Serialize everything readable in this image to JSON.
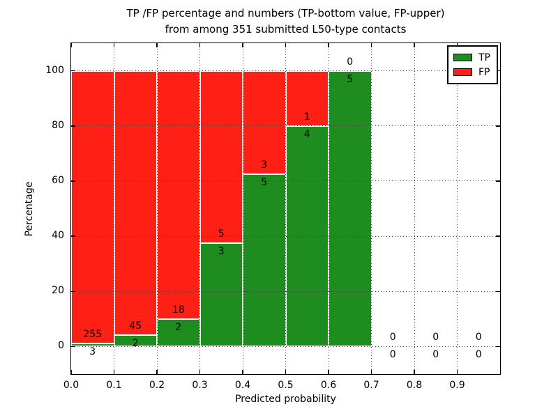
{
  "title": {
    "line1": "TP /FP percentage and numbers (TP-bottom value, FP-upper)",
    "line2": "from among 351 submitted L50-type contacts"
  },
  "colors": {
    "tp_green": "#1e8c1e",
    "fp_red": "#ff2015",
    "grid": "#3a3a3a",
    "frame": "#000000",
    "background": "#ffffff",
    "bar_edge": "#ffffff"
  },
  "chart_data": {
    "type": "bar",
    "stacked": true,
    "normalized": "each bin scaled to 100%",
    "title": "TP /FP percentage and numbers (TP-bottom value, FP-upper) from among 351 submitted L50-type contacts",
    "xlabel": "Predicted probability",
    "ylabel": "Percentage",
    "xlim": [
      0.0,
      1.0
    ],
    "ylim": [
      -10,
      110
    ],
    "grid": "dotted, both axes, drawn over bars",
    "x_ticks": [
      {
        "label": "0.0",
        "value": 0.0
      },
      {
        "label": "0.1",
        "value": 0.1
      },
      {
        "label": "0.2",
        "value": 0.2
      },
      {
        "label": "0.3",
        "value": 0.3
      },
      {
        "label": "0.4",
        "value": 0.4
      },
      {
        "label": "0.5",
        "value": 0.5
      },
      {
        "label": "0.6",
        "value": 0.6
      },
      {
        "label": "0.7",
        "value": 0.7
      },
      {
        "label": "0.8",
        "value": 0.8
      },
      {
        "label": "0.9",
        "value": 0.9
      }
    ],
    "y_ticks": [
      {
        "label": "0",
        "value": 0
      },
      {
        "label": "20",
        "value": 20
      },
      {
        "label": "40",
        "value": 40
      },
      {
        "label": "60",
        "value": 60
      },
      {
        "label": "80",
        "value": 80
      },
      {
        "label": "100",
        "value": 100
      }
    ],
    "legend": {
      "position": "upper right",
      "entries": [
        {
          "label": "TP",
          "color": "#1e8c1e"
        },
        {
          "label": "FP",
          "color": "#ff2015"
        }
      ]
    },
    "total_contacts": 351,
    "bins": [
      {
        "range": [
          0.0,
          0.1
        ],
        "tp": 3,
        "fp": 255,
        "tp_pct": 1.16,
        "fp_pct": 98.84
      },
      {
        "range": [
          0.1,
          0.2
        ],
        "tp": 2,
        "fp": 45,
        "tp_pct": 4.26,
        "fp_pct": 95.74
      },
      {
        "range": [
          0.2,
          0.3
        ],
        "tp": 2,
        "fp": 18,
        "tp_pct": 10.0,
        "fp_pct": 90.0
      },
      {
        "range": [
          0.3,
          0.4
        ],
        "tp": 3,
        "fp": 5,
        "tp_pct": 37.5,
        "fp_pct": 62.5
      },
      {
        "range": [
          0.4,
          0.5
        ],
        "tp": 5,
        "fp": 3,
        "tp_pct": 62.5,
        "fp_pct": 37.5
      },
      {
        "range": [
          0.5,
          0.6
        ],
        "tp": 4,
        "fp": 1,
        "tp_pct": 80.0,
        "fp_pct": 20.0
      },
      {
        "range": [
          0.6,
          0.7
        ],
        "tp": 5,
        "fp": 0,
        "tp_pct": 100.0,
        "fp_pct": 0.0
      },
      {
        "range": [
          0.7,
          0.8
        ],
        "tp": 0,
        "fp": 0,
        "tp_pct": 0.0,
        "fp_pct": 0.0
      },
      {
        "range": [
          0.8,
          0.9
        ],
        "tp": 0,
        "fp": 0,
        "tp_pct": 0.0,
        "fp_pct": 0.0
      },
      {
        "range": [
          0.9,
          1.0
        ],
        "tp": 0,
        "fp": 0,
        "tp_pct": 0.0,
        "fp_pct": 0.0
      }
    ]
  }
}
